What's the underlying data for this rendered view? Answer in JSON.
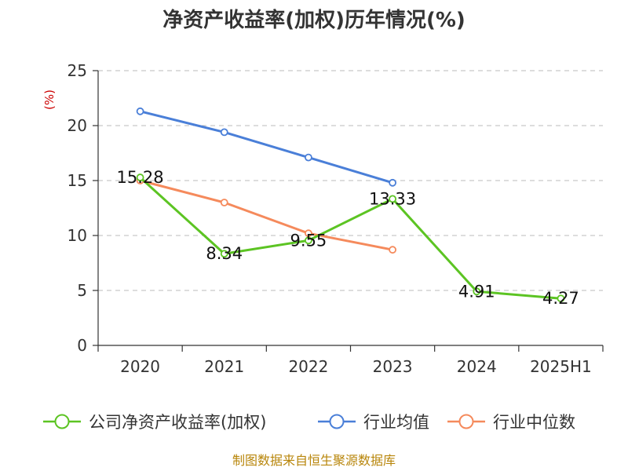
{
  "chart_data": {
    "type": "line",
    "title": "净资产收益率(加权)历年情况(%)",
    "ylabel": "(%)",
    "categories": [
      "2020",
      "2021",
      "2022",
      "2023",
      "2024",
      "2025H1"
    ],
    "ylim": [
      0,
      25
    ],
    "yticks": [
      0,
      5,
      10,
      15,
      20,
      25
    ],
    "grid": true,
    "legend_position": "bottom",
    "series": [
      {
        "name": "公司净资产收益率(加权)",
        "color": "#5cc423",
        "values": [
          15.28,
          8.34,
          9.55,
          13.33,
          4.91,
          4.27
        ],
        "labels": [
          "15.28",
          "8.34",
          "9.55",
          "13.33",
          "4.91",
          "4.27"
        ]
      },
      {
        "name": "行业均值",
        "color": "#4a7fd8",
        "values": [
          21.3,
          19.4,
          17.1,
          14.8,
          null,
          null
        ]
      },
      {
        "name": "行业中位数",
        "color": "#f58a5c",
        "values": [
          15.0,
          13.0,
          10.2,
          8.7,
          null,
          null
        ]
      }
    ]
  },
  "source": "制图数据来自恒生聚源数据库"
}
